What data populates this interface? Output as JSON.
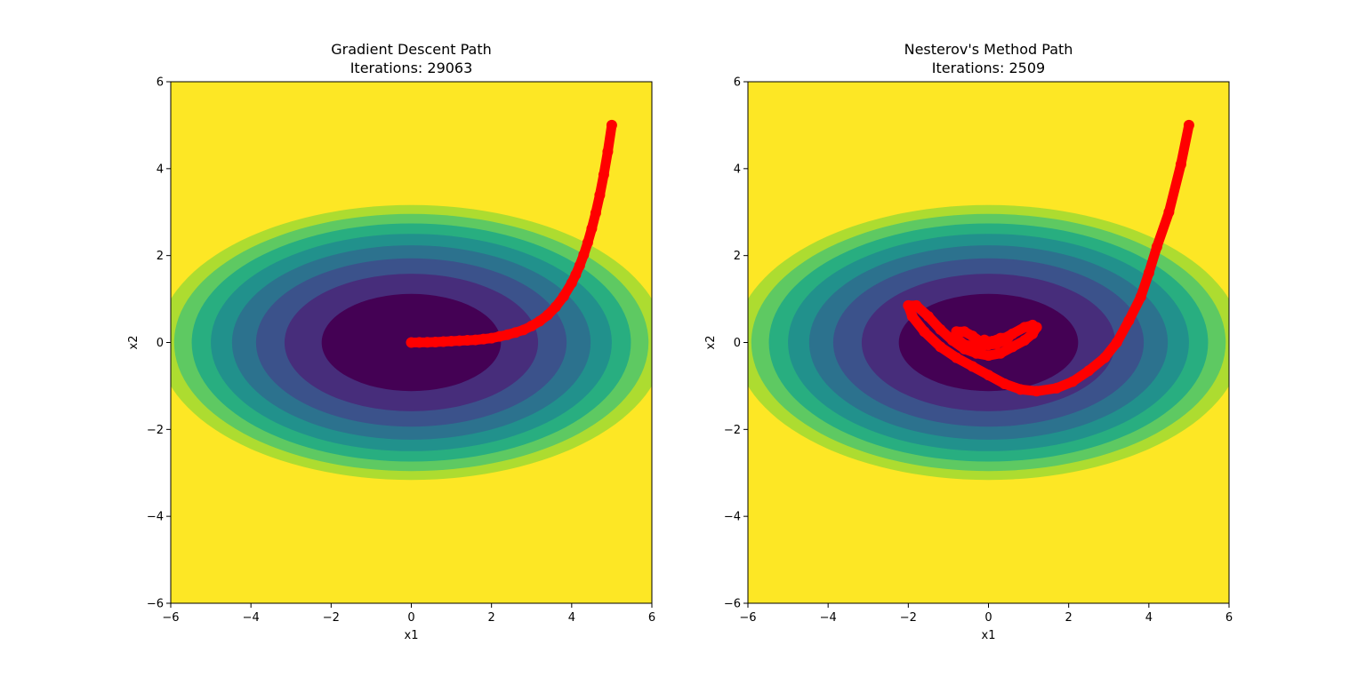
{
  "chart_data": [
    {
      "type": "contour",
      "title_line1": "Gradient Descent Path",
      "title_line2": "Iterations: 29063",
      "xlabel": "x1",
      "ylabel": "x2",
      "xlim": [
        -6,
        6
      ],
      "ylim": [
        -6,
        6
      ],
      "xticks": [
        -6,
        -4,
        -2,
        0,
        2,
        4,
        6
      ],
      "yticks": [
        -6,
        -4,
        -2,
        0,
        2,
        4,
        6
      ],
      "xtick_labels": [
        "−6",
        "−4",
        "−2",
        "0",
        "2",
        "4",
        "6"
      ],
      "ytick_labels": [
        "−6",
        "−4",
        "−2",
        "0",
        "2",
        "4",
        "6"
      ],
      "contour": {
        "function": "x1^2 + 4*x2^2",
        "levels": [
          0,
          5,
          10,
          15,
          20,
          25,
          30,
          35,
          40,
          45
        ],
        "colormap": "viridis",
        "fill_colors": [
          "#440154",
          "#472d7b",
          "#3b528b",
          "#2c728e",
          "#21918c",
          "#28ae80",
          "#5ec962",
          "#addc30",
          "#fde725"
        ]
      },
      "path": {
        "color": "#ff0000",
        "start": [
          5,
          5
        ],
        "end": [
          0,
          0
        ],
        "points": [
          [
            5,
            5
          ],
          [
            4.9,
            4.39
          ],
          [
            4.8,
            3.86
          ],
          [
            4.7,
            3.39
          ],
          [
            4.6,
            2.98
          ],
          [
            4.5,
            2.62
          ],
          [
            4.4,
            2.3
          ],
          [
            4.3,
            2.02
          ],
          [
            4.2,
            1.77
          ],
          [
            4.1,
            1.56
          ],
          [
            4,
            1.37
          ],
          [
            3.8,
            1.06
          ],
          [
            3.6,
            0.82
          ],
          [
            3.4,
            0.63
          ],
          [
            3.2,
            0.49
          ],
          [
            3,
            0.38
          ],
          [
            2.8,
            0.29
          ],
          [
            2.6,
            0.23
          ],
          [
            2.4,
            0.18
          ],
          [
            2.2,
            0.14
          ],
          [
            2,
            0.1
          ],
          [
            1.8,
            0.08
          ],
          [
            1.6,
            0.06
          ],
          [
            1.4,
            0.05
          ],
          [
            1.2,
            0.04
          ],
          [
            1,
            0.03
          ],
          [
            0.8,
            0.02
          ],
          [
            0.6,
            0.01
          ],
          [
            0.4,
            0.005
          ],
          [
            0.2,
            0.002
          ],
          [
            0,
            0
          ]
        ]
      }
    },
    {
      "type": "contour",
      "title_line1": "Nesterov's Method Path",
      "title_line2": "Iterations: 2509",
      "xlabel": "x1",
      "ylabel": "x2",
      "xlim": [
        -6,
        6
      ],
      "ylim": [
        -6,
        6
      ],
      "xticks": [
        -6,
        -4,
        -2,
        0,
        2,
        4,
        6
      ],
      "yticks": [
        -6,
        -4,
        -2,
        0,
        2,
        4,
        6
      ],
      "xtick_labels": [
        "−6",
        "−4",
        "−2",
        "0",
        "2",
        "4",
        "6"
      ],
      "ytick_labels": [
        "−6",
        "−4",
        "−2",
        "0",
        "2",
        "4",
        "6"
      ],
      "contour": {
        "function": "x1^2 + 4*x2^2",
        "levels": [
          0,
          5,
          10,
          15,
          20,
          25,
          30,
          35,
          40,
          45
        ],
        "colormap": "viridis",
        "fill_colors": [
          "#440154",
          "#472d7b",
          "#3b528b",
          "#2c728e",
          "#21918c",
          "#28ae80",
          "#5ec962",
          "#addc30",
          "#fde725"
        ]
      },
      "path": {
        "color": "#ff0000",
        "start": [
          5,
          5
        ],
        "end": [
          0,
          0
        ],
        "points": [
          [
            5,
            5
          ],
          [
            4.8,
            4.1
          ],
          [
            4.5,
            3.0
          ],
          [
            4.2,
            2.2
          ],
          [
            4,
            1.6
          ],
          [
            3.8,
            1.05
          ],
          [
            3.5,
            0.5
          ],
          [
            3.2,
            0.0
          ],
          [
            2.9,
            -0.35
          ],
          [
            2.5,
            -0.65
          ],
          [
            2.1,
            -0.9
          ],
          [
            1.7,
            -1.05
          ],
          [
            1.2,
            -1.12
          ],
          [
            0.8,
            -1.08
          ],
          [
            0.4,
            -0.95
          ],
          [
            0,
            -0.75
          ],
          [
            -0.4,
            -0.55
          ],
          [
            -0.8,
            -0.35
          ],
          [
            -1.2,
            -0.1
          ],
          [
            -1.6,
            0.25
          ],
          [
            -1.9,
            0.6
          ],
          [
            -2,
            0.85
          ],
          [
            -1.8,
            0.85
          ],
          [
            -1.5,
            0.6
          ],
          [
            -1.2,
            0.3
          ],
          [
            -0.9,
            0.05
          ],
          [
            -0.6,
            -0.15
          ],
          [
            -0.3,
            -0.25
          ],
          [
            0,
            -0.3
          ],
          [
            0.3,
            -0.25
          ],
          [
            0.6,
            -0.1
          ],
          [
            0.9,
            0.05
          ],
          [
            1.1,
            0.2
          ],
          [
            1.2,
            0.35
          ],
          [
            1.1,
            0.4
          ],
          [
            0.9,
            0.35
          ],
          [
            0.6,
            0.2
          ],
          [
            0.3,
            0.05
          ],
          [
            0,
            -0.05
          ],
          [
            -0.3,
            -0.1
          ],
          [
            -0.6,
            -0.05
          ],
          [
            -0.8,
            0.1
          ],
          [
            -0.8,
            0.25
          ],
          [
            -0.6,
            0.25
          ],
          [
            -0.4,
            0.15
          ],
          [
            -0.2,
            0.02
          ],
          [
            0,
            -0.05
          ],
          [
            0.2,
            -0.03
          ],
          [
            0.4,
            0.05
          ],
          [
            0.5,
            0.12
          ],
          [
            0.3,
            0.1
          ],
          [
            0.1,
            0.03
          ],
          [
            -0.1,
            -0.02
          ],
          [
            -0.2,
            0.03
          ],
          [
            -0.1,
            0.06
          ],
          [
            0,
            0.02
          ],
          [
            0,
            0
          ]
        ]
      }
    }
  ]
}
